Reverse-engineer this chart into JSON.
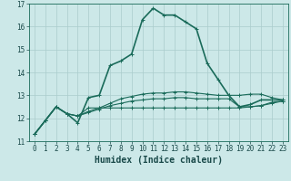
{
  "title": "",
  "xlabel": "Humidex (Indice chaleur)",
  "background_color": "#cce8e8",
  "grid_color": "#aacccc",
  "line_color": "#1a6b5a",
  "xlim": [
    -0.5,
    23.5
  ],
  "ylim": [
    11,
    17
  ],
  "xticks": [
    0,
    1,
    2,
    3,
    4,
    5,
    6,
    7,
    8,
    9,
    10,
    11,
    12,
    13,
    14,
    15,
    16,
    17,
    18,
    19,
    20,
    21,
    22,
    23
  ],
  "yticks": [
    11,
    12,
    13,
    14,
    15,
    16,
    17
  ],
  "series": [
    [
      11.3,
      11.9,
      12.5,
      12.2,
      11.8,
      12.9,
      13.0,
      14.3,
      14.5,
      14.8,
      16.3,
      16.8,
      16.5,
      16.5,
      16.2,
      15.9,
      14.4,
      13.7,
      13.0,
      12.5,
      12.6,
      12.8,
      12.8,
      12.8
    ],
    [
      11.3,
      11.9,
      12.5,
      12.2,
      12.1,
      12.45,
      12.45,
      12.45,
      12.45,
      12.45,
      12.45,
      12.45,
      12.45,
      12.45,
      12.45,
      12.45,
      12.45,
      12.45,
      12.45,
      12.45,
      12.5,
      12.55,
      12.65,
      12.75
    ],
    [
      11.3,
      11.9,
      12.5,
      12.2,
      12.1,
      12.3,
      12.45,
      12.65,
      12.85,
      12.95,
      13.05,
      13.1,
      13.1,
      13.15,
      13.15,
      13.1,
      13.05,
      13.0,
      13.0,
      13.0,
      13.05,
      13.05,
      12.9,
      12.8
    ],
    [
      11.3,
      11.9,
      12.5,
      12.2,
      12.1,
      12.25,
      12.4,
      12.55,
      12.65,
      12.75,
      12.8,
      12.85,
      12.85,
      12.9,
      12.9,
      12.85,
      12.85,
      12.85,
      12.85,
      12.5,
      12.5,
      12.55,
      12.7,
      12.75
    ]
  ],
  "linewidths": [
    1.2,
    0.8,
    0.8,
    0.8
  ],
  "font_color": "#1a4a4a",
  "tick_fontsize": 5.5,
  "label_fontsize": 7
}
